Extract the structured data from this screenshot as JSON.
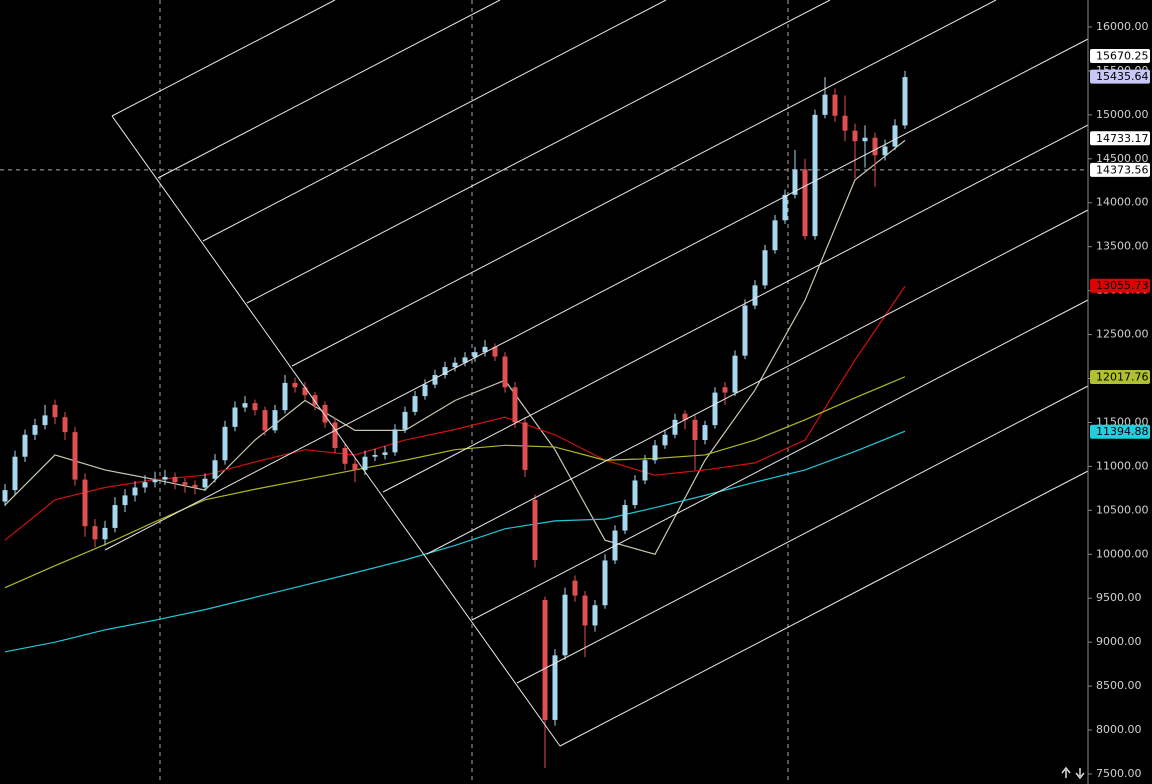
{
  "chart_data": {
    "type": "candlestick",
    "ylim": [
      7386,
      16307
    ],
    "yticks": [
      {
        "value": 7500,
        "label": "7500.00"
      },
      {
        "value": 8000,
        "label": "8000.00"
      },
      {
        "value": 8500,
        "label": "8500.00"
      },
      {
        "value": 9000,
        "label": "9000.00"
      },
      {
        "value": 9500,
        "label": "9500.00"
      },
      {
        "value": 10000,
        "label": "10000.00"
      },
      {
        "value": 10500,
        "label": "10500.00"
      },
      {
        "value": 11000,
        "label": "11000.00"
      },
      {
        "value": 11500,
        "label": "11500.00"
      },
      {
        "value": 12000,
        "label": "12000.00"
      },
      {
        "value": 12500,
        "label": "12500.00"
      },
      {
        "value": 13000,
        "label": "13000.00"
      },
      {
        "value": 13500,
        "label": "13500.00"
      },
      {
        "value": 14000,
        "label": "14000.00"
      },
      {
        "value": 14500,
        "label": "14500.00"
      },
      {
        "value": 15000,
        "label": "15000.00"
      },
      {
        "value": 15500,
        "label": "15500.00"
      },
      {
        "value": 16000,
        "label": "16000.00"
      }
    ],
    "up_color": "#a8d8f0",
    "down_color": "#e05050",
    "ohlc": [
      [
        10600,
        10800,
        10550,
        10730
      ],
      [
        10730,
        11180,
        10680,
        11110
      ],
      [
        11110,
        11420,
        11050,
        11360
      ],
      [
        11360,
        11540,
        11300,
        11470
      ],
      [
        11470,
        11700,
        11420,
        11580
      ],
      [
        11700,
        11760,
        11480,
        11560
      ],
      [
        11560,
        11620,
        11300,
        11390
      ],
      [
        11390,
        11450,
        10780,
        10850
      ],
      [
        10850,
        10920,
        10200,
        10320
      ],
      [
        10320,
        10400,
        10080,
        10170
      ],
      [
        10170,
        10380,
        10100,
        10300
      ],
      [
        10300,
        10650,
        10250,
        10560
      ],
      [
        10560,
        10740,
        10480,
        10670
      ],
      [
        10670,
        10830,
        10600,
        10760
      ],
      [
        10760,
        10900,
        10700,
        10820
      ],
      [
        10820,
        10940,
        10760,
        10850
      ],
      [
        10850,
        10960,
        10790,
        10880
      ],
      [
        10880,
        10930,
        10740,
        10820
      ],
      [
        10820,
        10870,
        10700,
        10790
      ],
      [
        10790,
        10840,
        10680,
        10760
      ],
      [
        10760,
        10920,
        10720,
        10860
      ],
      [
        10860,
        11140,
        10820,
        11070
      ],
      [
        11070,
        11520,
        11020,
        11450
      ],
      [
        11450,
        11740,
        11400,
        11670
      ],
      [
        11670,
        11800,
        11620,
        11720
      ],
      [
        11720,
        11760,
        11580,
        11640
      ],
      [
        11640,
        11680,
        11350,
        11410
      ],
      [
        11410,
        11700,
        11380,
        11640
      ],
      [
        11640,
        12040,
        11600,
        11950
      ],
      [
        11950,
        12010,
        11840,
        11900
      ],
      [
        11900,
        11960,
        11760,
        11810
      ],
      [
        11810,
        11850,
        11640,
        11700
      ],
      [
        11700,
        11740,
        11440,
        11500
      ],
      [
        11500,
        11550,
        11150,
        11210
      ],
      [
        11210,
        11260,
        10960,
        11030
      ],
      [
        11030,
        11090,
        10820,
        10960
      ],
      [
        10960,
        11180,
        10900,
        11110
      ],
      [
        11110,
        11200,
        11060,
        11130
      ],
      [
        11130,
        11230,
        11080,
        11160
      ],
      [
        11160,
        11480,
        11120,
        11420
      ],
      [
        11420,
        11680,
        11380,
        11620
      ],
      [
        11620,
        11860,
        11580,
        11800
      ],
      [
        11800,
        11990,
        11760,
        11930
      ],
      [
        11930,
        12100,
        11890,
        12040
      ],
      [
        12040,
        12190,
        12000,
        12130
      ],
      [
        12130,
        12240,
        12080,
        12180
      ],
      [
        12180,
        12300,
        12140,
        12240
      ],
      [
        12240,
        12360,
        12190,
        12300
      ],
      [
        12300,
        12440,
        12250,
        12360
      ],
      [
        12360,
        12400,
        12200,
        12250
      ],
      [
        12250,
        12300,
        11840,
        11900
      ],
      [
        11900,
        11960,
        11440,
        11500
      ],
      [
        11500,
        11560,
        10880,
        10960
      ],
      [
        10620,
        10680,
        9850,
        9935
      ],
      [
        9480,
        9520,
        7570,
        8115
      ],
      [
        8115,
        8920,
        8050,
        8850
      ],
      [
        8850,
        9620,
        8800,
        9540
      ],
      [
        9700,
        9760,
        9460,
        9530
      ],
      [
        9530,
        9580,
        8830,
        9190
      ],
      [
        9190,
        9480,
        9120,
        9420
      ],
      [
        9420,
        10000,
        9380,
        9930
      ],
      [
        9930,
        10330,
        9890,
        10270
      ],
      [
        10270,
        10620,
        10230,
        10560
      ],
      [
        10560,
        10900,
        10520,
        10840
      ],
      [
        10840,
        11130,
        10800,
        11070
      ],
      [
        11070,
        11300,
        11030,
        11240
      ],
      [
        11240,
        11420,
        11200,
        11360
      ],
      [
        11360,
        11600,
        11320,
        11530
      ],
      [
        11600,
        11640,
        11420,
        11530
      ],
      [
        11530,
        11580,
        10960,
        11300
      ],
      [
        11300,
        11520,
        11250,
        11470
      ],
      [
        11470,
        11900,
        11430,
        11840
      ],
      [
        11900,
        11960,
        11700,
        11840
      ],
      [
        11840,
        12320,
        11800,
        12260
      ],
      [
        12260,
        12900,
        12220,
        12830
      ],
      [
        12830,
        13120,
        12790,
        13060
      ],
      [
        13060,
        13520,
        13020,
        13460
      ],
      [
        13460,
        13860,
        13420,
        13800
      ],
      [
        13800,
        14150,
        13760,
        14090
      ],
      [
        14090,
        14600,
        14050,
        14380
      ],
      [
        14380,
        14500,
        13580,
        13620
      ],
      [
        13620,
        15060,
        13580,
        15000
      ],
      [
        15000,
        15430,
        14960,
        15230
      ],
      [
        15230,
        15300,
        14920,
        14990
      ],
      [
        14990,
        15220,
        14700,
        14820
      ],
      [
        14820,
        14900,
        14280,
        14700
      ],
      [
        14700,
        14880,
        14400,
        14740
      ],
      [
        14740,
        14800,
        14180,
        14540
      ],
      [
        14540,
        14720,
        14480,
        14640
      ],
      [
        14640,
        14950,
        14600,
        14880
      ],
      [
        14880,
        15500,
        14840,
        15430
      ]
    ],
    "x": [
      0,
      5,
      10,
      15,
      20,
      25,
      30,
      35,
      40,
      45,
      50,
      55,
      60,
      65,
      70,
      75,
      80,
      85,
      90
    ],
    "moving_averages": [
      {
        "color": "#c8c8b0",
        "values": [
          10560,
          11130,
          10960,
          10850,
          10730,
          11300,
          11750,
          11410,
          11410,
          11750,
          11980,
          11190,
          10160,
          10000,
          11070,
          11870,
          12890,
          14260,
          14710
        ]
      },
      {
        "color": "#d01010",
        "values": [
          10160,
          10620,
          10760,
          10850,
          10900,
          11050,
          11190,
          11130,
          11300,
          11420,
          11560,
          11360,
          11070,
          10900,
          10960,
          11040,
          11300,
          12210,
          13050
        ]
      },
      {
        "color": "#b0b820",
        "values": [
          9620,
          9870,
          10110,
          10370,
          10620,
          10740,
          10850,
          10960,
          11070,
          11190,
          11240,
          11220,
          11070,
          11090,
          11130,
          11300,
          11530,
          11780,
          12020
        ]
      },
      {
        "color": "#20c8d8",
        "values": [
          8890,
          9000,
          9140,
          9250,
          9370,
          9510,
          9650,
          9790,
          9935,
          10100,
          10290,
          10380,
          10400,
          10530,
          10670,
          10820,
          10960,
          11170,
          11400
        ]
      }
    ],
    "price_labels": [
      {
        "value": 15670.25,
        "color": "#ffffff"
      },
      {
        "value": 15435.64,
        "color": "#c8c8f8"
      },
      {
        "value": 14733.17,
        "color": "#ffffff"
      },
      {
        "value": 14373.56,
        "color": "#ffffff"
      },
      {
        "value": 13055.73,
        "color": "#e00000"
      },
      {
        "value": 12017.76,
        "color": "#b0c030"
      },
      {
        "value": 11394.88,
        "color": "#20d0e0"
      }
    ],
    "crosshair": 14373.56
  }
}
